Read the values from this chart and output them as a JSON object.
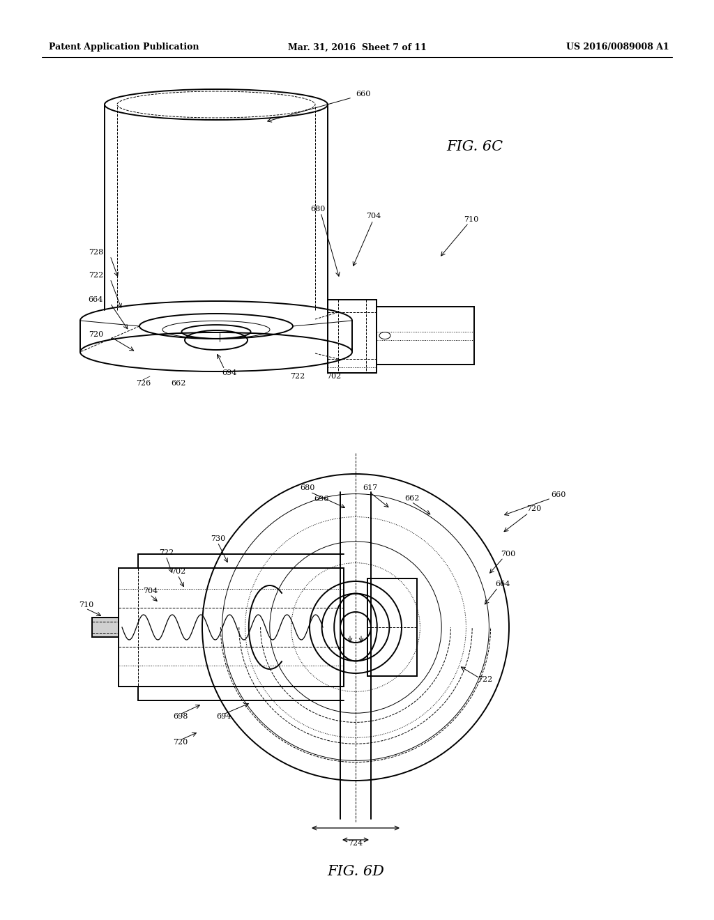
{
  "bg_color": "#ffffff",
  "header_left": "Patent Application Publication",
  "header_mid": "Mar. 31, 2016  Sheet 7 of 11",
  "header_right": "US 2016/0089008 A1",
  "fig6c_label": "FIG. 6C",
  "fig6d_label": "FIG. 6D",
  "line_color": "#000000",
  "gray_color": "#aaaaaa",
  "lw_main": 1.4,
  "lw_thin": 0.7,
  "lw_dash": 0.7,
  "fs_label": 8,
  "fs_fig": 15
}
